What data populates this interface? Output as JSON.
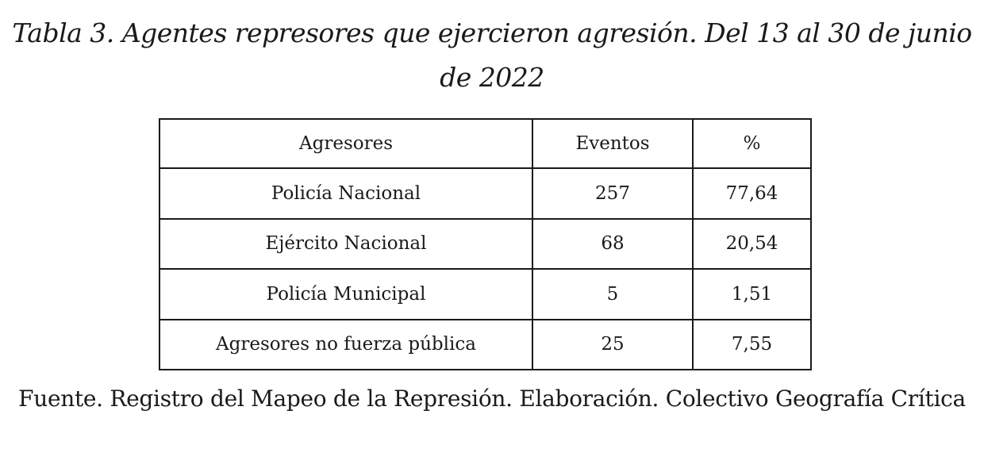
{
  "caption": "Tabla 3. Agentes represores que ejercieron agresión. Del 13 al 30 de junio de 2022",
  "table": {
    "headers": [
      "Agresores",
      "Eventos",
      "%"
    ],
    "rows": [
      [
        "Policía Nacional",
        "257",
        "77,64"
      ],
      [
        "Ejército Nacional",
        "68",
        "20,54"
      ],
      [
        "Policía Municipal",
        "5",
        "1,51"
      ],
      [
        "Agresores no fuerza pública",
        "25",
        "7,55"
      ]
    ]
  },
  "source": "Fuente. Registro del Mapeo de la Represión. Elaboración. Colectivo Geografía Crítica"
}
